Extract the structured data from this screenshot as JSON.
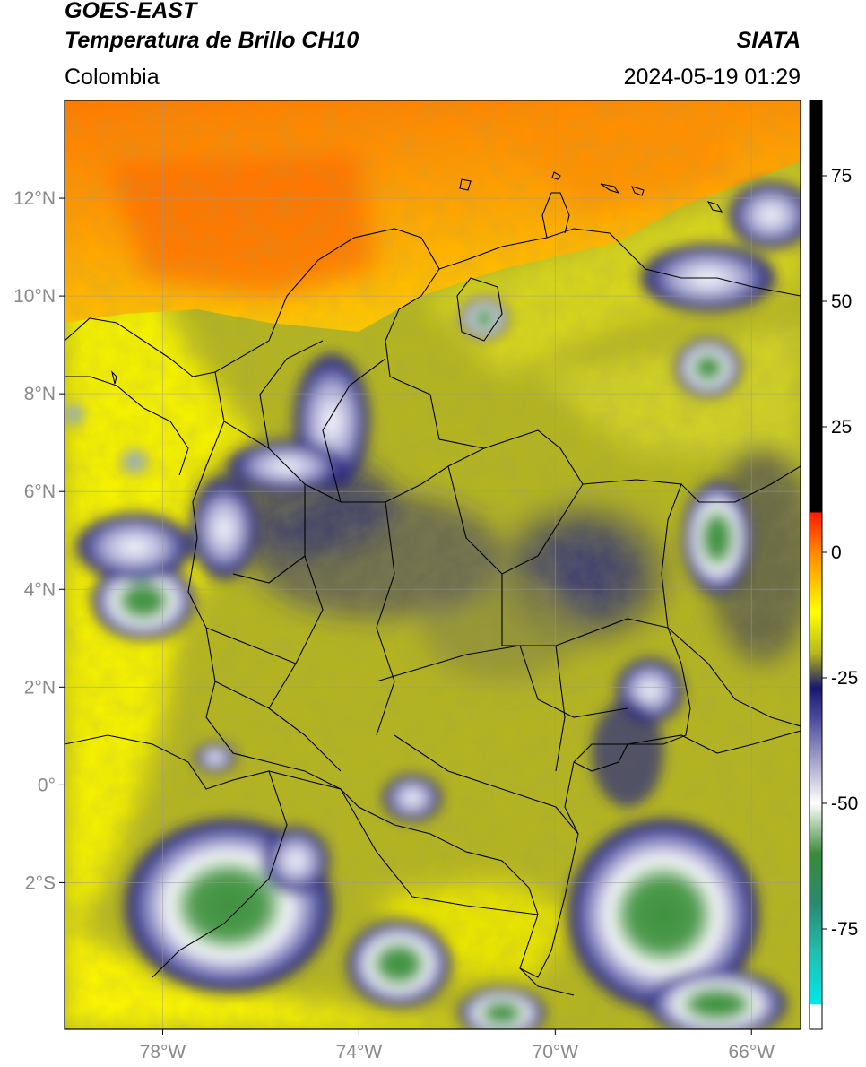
{
  "header": {
    "satellite": "GOES-EAST",
    "product": "Temperatura de Brillo CH10",
    "region": "Colombia",
    "organization": "SIATA",
    "datetime": "2024-05-19 01:29"
  },
  "map": {
    "lon_range": [
      -80,
      -65
    ],
    "lat_range": [
      -5,
      14
    ],
    "lon_ticks": [
      {
        "value": -78,
        "label": "78°W"
      },
      {
        "value": -74,
        "label": "74°W"
      },
      {
        "value": -70,
        "label": "70°W"
      },
      {
        "value": -66,
        "label": "66°W"
      }
    ],
    "lat_ticks": [
      {
        "value": 12,
        "label": "12°N"
      },
      {
        "value": 10,
        "label": "10°N"
      },
      {
        "value": 8,
        "label": "8°N"
      },
      {
        "value": 6,
        "label": "6°N"
      },
      {
        "value": 4,
        "label": "4°N"
      },
      {
        "value": 2,
        "label": "2°N"
      },
      {
        "value": 0,
        "label": "0°"
      },
      {
        "value": -2,
        "label": "2°S"
      }
    ],
    "grid": true
  },
  "colorbar": {
    "range": [
      -95,
      90
    ],
    "ticks": [
      {
        "value": 75,
        "label": "75"
      },
      {
        "value": 50,
        "label": "50"
      },
      {
        "value": 25,
        "label": "25"
      },
      {
        "value": 0,
        "label": "0"
      },
      {
        "value": -25,
        "label": "-25"
      },
      {
        "value": -50,
        "label": "-50"
      },
      {
        "value": -75,
        "label": "-75"
      }
    ],
    "stops": [
      {
        "value": 90,
        "color": "#000000"
      },
      {
        "value": 8,
        "color": "#000000"
      },
      {
        "value": 7.9,
        "color": "#ff1a00"
      },
      {
        "value": 0,
        "color": "#ff8800"
      },
      {
        "value": -12,
        "color": "#ffff00"
      },
      {
        "value": -20,
        "color": "#b8b820"
      },
      {
        "value": -24,
        "color": "#5a5a48"
      },
      {
        "value": -27,
        "color": "#18186e"
      },
      {
        "value": -33,
        "color": "#4a4a9c"
      },
      {
        "value": -45,
        "color": "#c8c8e0"
      },
      {
        "value": -50,
        "color": "#ffffff"
      },
      {
        "value": -60,
        "color": "#3a8a3a"
      },
      {
        "value": -70,
        "color": "#2a8a70"
      },
      {
        "value": -80,
        "color": "#20c0b0"
      },
      {
        "value": -90,
        "color": "#00e8e8"
      },
      {
        "value": -90.1,
        "color": "#ffffff"
      },
      {
        "value": -95,
        "color": "#ffffff"
      }
    ]
  }
}
